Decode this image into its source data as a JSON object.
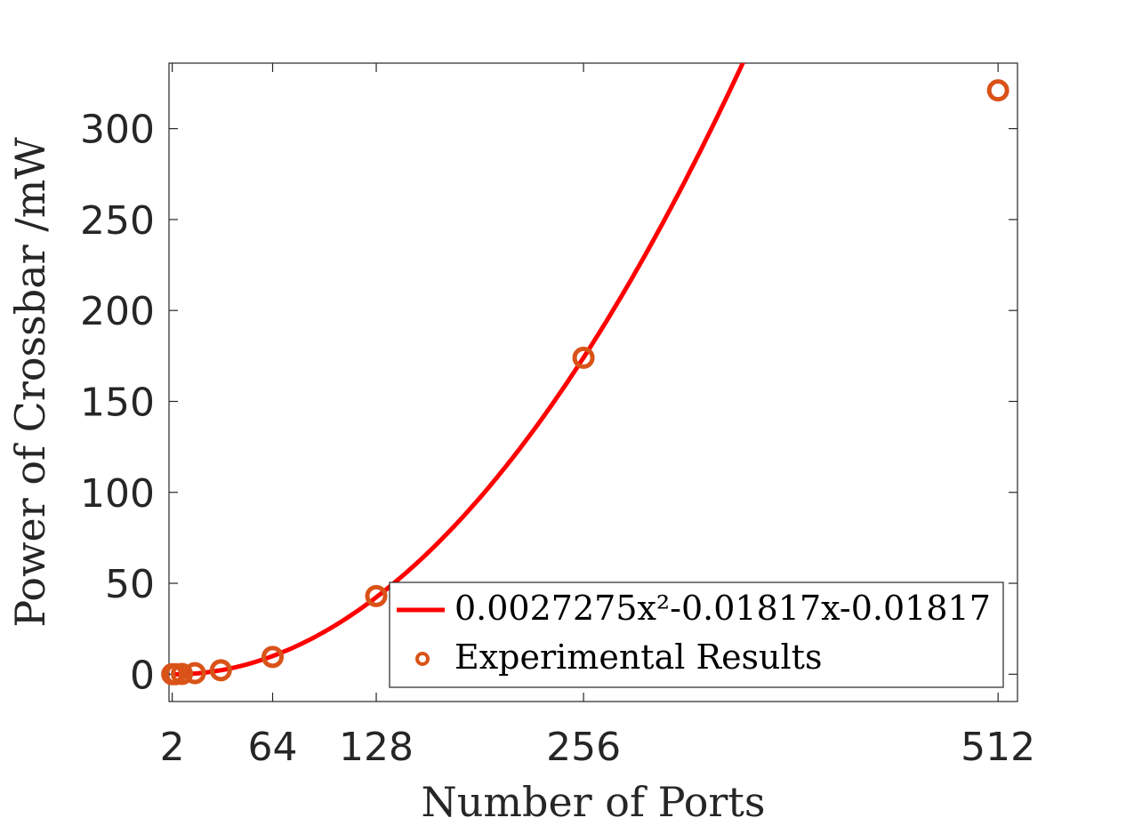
{
  "colors": {
    "fit_line": "#ff0000",
    "markers": "#d95319",
    "axis": "#262626",
    "legend_border": "#262626"
  },
  "chart_data": {
    "type": "scatter",
    "xlabel": "Number of Ports",
    "ylabel": "Power of Crossbar /mW",
    "xlim": [
      0,
      524
    ],
    "ylim": [
      -15,
      336
    ],
    "x_ticks": [
      2,
      64,
      128,
      256,
      512
    ],
    "y_ticks": [
      0,
      50,
      100,
      150,
      200,
      250,
      300
    ],
    "grid": false,
    "legend_position": "bottom-right",
    "series": [
      {
        "name": "0.0027275x²-0.01817x-0.01817",
        "kind": "line",
        "coefficients": {
          "a": 0.0027275,
          "b": -0.01817,
          "c": -0.01817
        },
        "x_range": [
          2,
          512
        ]
      },
      {
        "name": "Experimental Results",
        "kind": "scatter",
        "x": [
          2,
          4,
          8,
          16,
          32,
          64,
          128,
          256,
          512
        ],
        "y": [
          0.01,
          0.03,
          0.15,
          0.6,
          2.2,
          9.5,
          43,
          174,
          321
        ]
      }
    ]
  }
}
